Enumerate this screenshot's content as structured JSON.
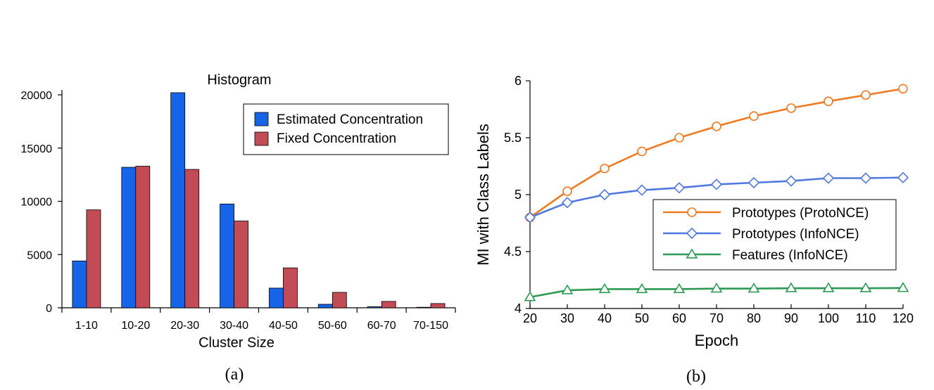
{
  "chart_data": [
    {
      "type": "bar",
      "title": "Histogram",
      "xlabel": "Cluster Size",
      "ylabel": "",
      "caption": "(a)",
      "categories": [
        "1-10",
        "10-20",
        "20-30",
        "30-40",
        "40-50",
        "50-60",
        "60-70",
        "70-150"
      ],
      "series": [
        {
          "name": "Estimated Concentration",
          "color": "#1665e8",
          "values": [
            4400,
            13200,
            20200,
            9750,
            1850,
            330,
            100,
            50
          ]
        },
        {
          "name": "Fixed Concentration",
          "color": "#c24b55",
          "values": [
            9200,
            13300,
            13000,
            8150,
            3750,
            1450,
            600,
            400
          ]
        }
      ],
      "ylim": [
        0,
        20000
      ],
      "yticks": [
        0,
        5000,
        10000,
        15000,
        20000
      ],
      "legend": "top-right",
      "grid": false
    },
    {
      "type": "line",
      "title": "",
      "xlabel": "Epoch",
      "ylabel": "MI with Class Labels",
      "caption": "(b)",
      "x": [
        20,
        30,
        40,
        50,
        60,
        70,
        80,
        90,
        100,
        110,
        120
      ],
      "series": [
        {
          "name": "Prototypes (ProtoNCE)",
          "color": "#f07a22",
          "marker": "circle",
          "values": [
            4.8,
            5.03,
            5.23,
            5.38,
            5.5,
            5.6,
            5.69,
            5.76,
            5.82,
            5.875,
            5.93
          ]
        },
        {
          "name": "Prototypes (InfoNCE)",
          "color": "#4f78e0",
          "marker": "diamond",
          "values": [
            4.8,
            4.93,
            5.0,
            5.04,
            5.06,
            5.09,
            5.105,
            5.12,
            5.145,
            5.145,
            5.15
          ]
        },
        {
          "name": "Features (InfoNCE)",
          "color": "#2e9a56",
          "marker": "triangle",
          "values": [
            4.1,
            4.16,
            4.17,
            4.17,
            4.17,
            4.175,
            4.175,
            4.178,
            4.178,
            4.178,
            4.18
          ]
        }
      ],
      "xlim": [
        20,
        120
      ],
      "ylim": [
        4,
        6
      ],
      "yticks": [
        4,
        4.5,
        5,
        5.5,
        6
      ],
      "ytick_labels": [
        "4",
        "4.5",
        "5",
        "5.5",
        "6"
      ],
      "legend": "center-right",
      "grid": false
    }
  ]
}
